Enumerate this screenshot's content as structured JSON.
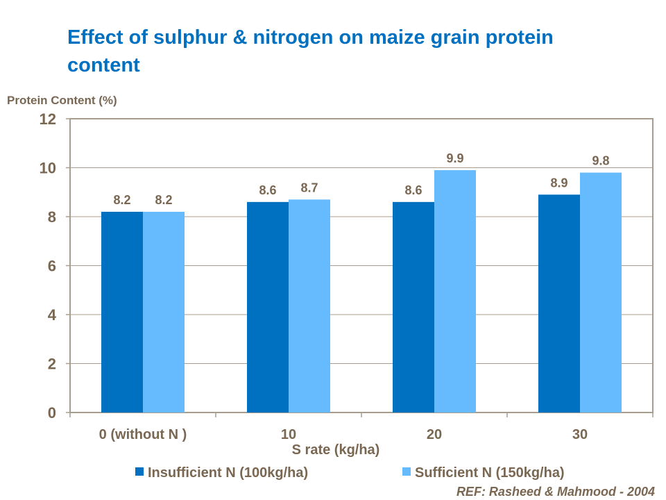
{
  "chart_data": {
    "type": "bar",
    "title": "Effect of sulphur & nitrogen on maize grain protein content",
    "ylabel": "Protein Content (%)",
    "xlabel": "S rate (kg/ha)",
    "categories": [
      "0 (without N )",
      "10",
      "20",
      "30"
    ],
    "series": [
      {
        "name": "Insufficient N (100kg/ha)",
        "values": [
          8.2,
          8.6,
          8.6,
          8.9
        ],
        "color": "#0070C0"
      },
      {
        "name": "Sufficient N (150kg/ha)",
        "values": [
          8.2,
          8.7,
          9.9,
          9.8
        ],
        "color": "#66BBFF"
      }
    ],
    "data_labels": [
      [
        "8.2",
        "8.6",
        "8.6",
        "8.9"
      ],
      [
        "8.2",
        "8.7",
        "9.9",
        "9.8"
      ]
    ],
    "ylim": [
      0,
      12
    ],
    "yticks": [
      0,
      2,
      4,
      6,
      8,
      10,
      12
    ],
    "grid": true,
    "legend": "bottom",
    "colors": {
      "title": "#0070C0",
      "text": "#7A6752",
      "axis": "#A89C8E"
    }
  },
  "reference": "REF: Rasheed & Mahmood - 2004"
}
